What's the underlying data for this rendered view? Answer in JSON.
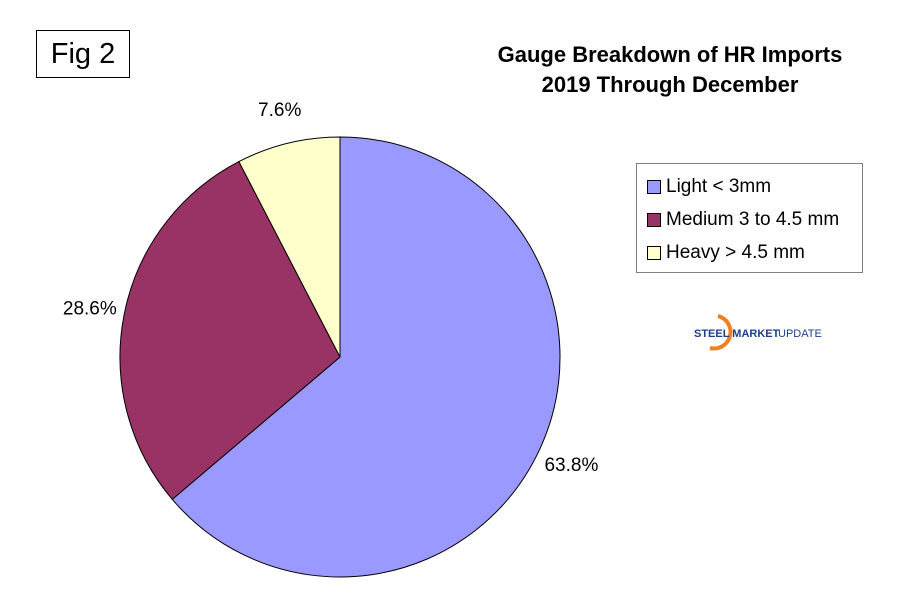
{
  "fig_label": "Fig 2",
  "chart_data": {
    "type": "pie",
    "title": "Gauge Breakdown of HR Imports",
    "subtitle": "2019 Through December",
    "categories": [
      "Light < 3mm",
      "Medium 3 to 4.5 mm",
      "Heavy > 4.5 mm"
    ],
    "values": [
      63.8,
      28.6,
      7.6
    ],
    "data_labels": [
      "63.8%",
      "28.6%",
      "7.6%"
    ],
    "colors": [
      "#9999ff",
      "#993366",
      "#ffffcc"
    ],
    "start_angle": "top",
    "direction": "clockwise",
    "legend_position": "right"
  },
  "logo": {
    "text_bold": "STEEL MARKET",
    "text_light": "UPDATE"
  }
}
